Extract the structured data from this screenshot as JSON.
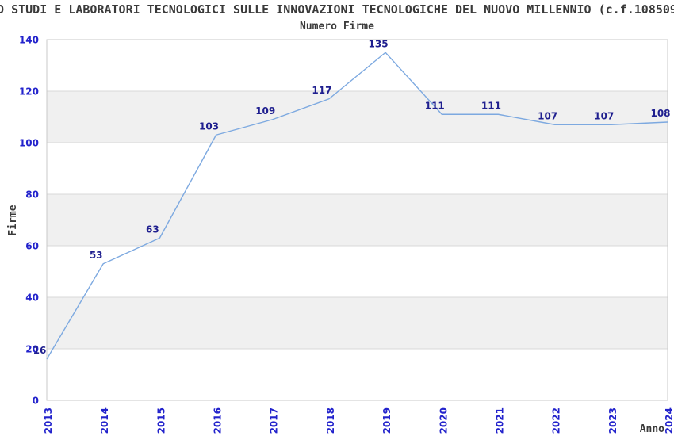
{
  "header": {
    "title": "O STUDI E LABORATORI TECNOLOGICI SULLE INNOVAZIONI TECNOLOGICHE DEL NUOVO MILLENNIO (c.f.108509",
    "subtitle": "Numero Firme"
  },
  "chart_data": {
    "type": "line",
    "title": "Numero Firme",
    "xlabel": "Anno",
    "ylabel": "Firme",
    "categories": [
      "2013",
      "2014",
      "2015",
      "2016",
      "2017",
      "2018",
      "2019",
      "2020",
      "2021",
      "2022",
      "2023",
      "2024"
    ],
    "values": [
      16,
      53,
      63,
      103,
      109,
      117,
      135,
      111,
      111,
      107,
      107,
      108
    ],
    "ylim": [
      0,
      140
    ],
    "ytick_step": 20,
    "yticks": [
      0,
      20,
      40,
      60,
      80,
      100,
      120,
      140
    ],
    "grid": true,
    "alternating_bands": true,
    "legend": "none",
    "colors": {
      "line": "#7da9e0",
      "data_label": "#1f1f8f",
      "tick_label": "#2323cc",
      "axis_text": "#3a3a3a",
      "band": "#f0f0f0",
      "grid_line": "#d8d8d8",
      "border": "#c9c9c9",
      "background": "#ffffff"
    }
  }
}
